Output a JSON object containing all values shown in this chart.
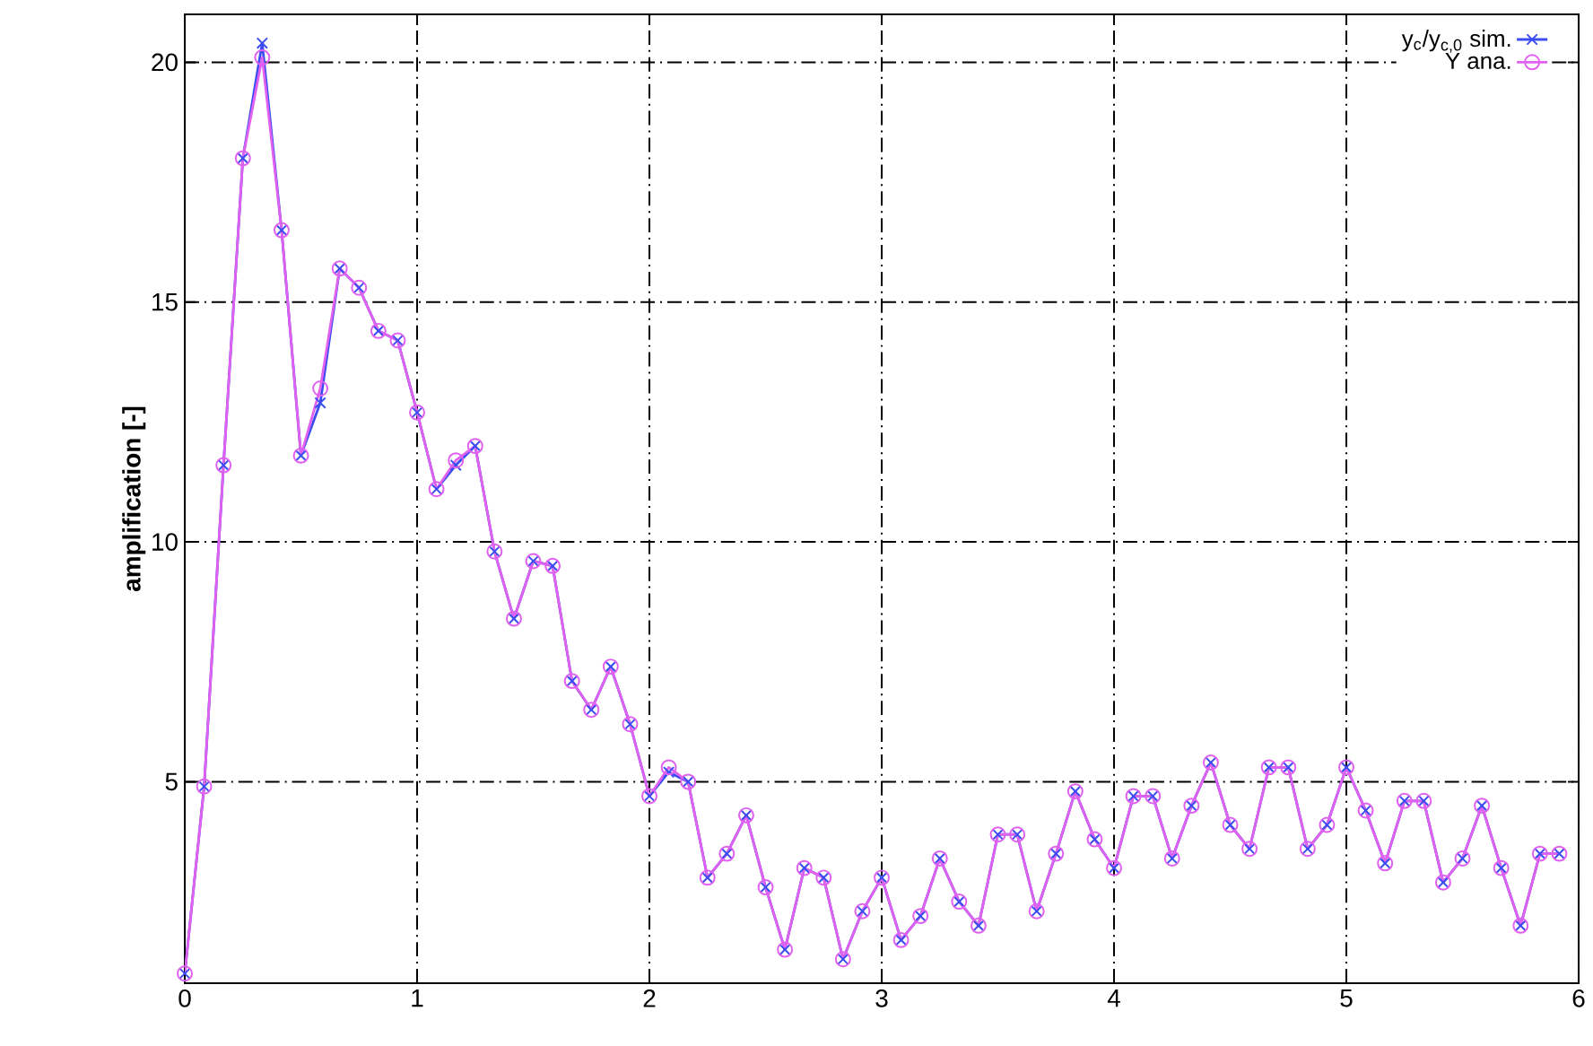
{
  "chart_data": {
    "type": "line",
    "ylabel": "amplification [-]",
    "x": [
      0,
      0.0833,
      0.1667,
      0.25,
      0.3333,
      0.4167,
      0.5,
      0.5833,
      0.6667,
      0.75,
      0.8333,
      0.9167,
      1,
      1.0833,
      1.1667,
      1.25,
      1.3333,
      1.4167,
      1.5,
      1.5833,
      1.6667,
      1.75,
      1.8333,
      1.9167,
      2,
      2.0833,
      2.1667,
      2.25,
      2.3333,
      2.4167,
      2.5,
      2.5833,
      2.6667,
      2.75,
      2.8333,
      2.9167,
      3,
      3.0833,
      3.1667,
      3.25,
      3.3333,
      3.4167,
      3.5,
      3.5833,
      3.6667,
      3.75,
      3.8333,
      3.9167,
      4,
      4.0833,
      4.1667,
      4.25,
      4.3333,
      4.4167,
      4.5,
      4.5833,
      4.6667,
      4.75,
      4.8333,
      4.9167,
      5,
      5.0833,
      5.1667,
      5.25,
      5.3333,
      5.4167,
      5.5,
      5.5833,
      5.6667,
      5.75,
      5.8333,
      5.9167
    ],
    "series": [
      {
        "name": "y$_{c}$/y$_{c,0}$ sim.",
        "color": "#3b4cf0",
        "marker": "cross",
        "values": [
          1.0,
          4.9,
          11.6,
          18.0,
          20.4,
          16.5,
          11.8,
          12.9,
          15.7,
          15.3,
          14.4,
          14.2,
          12.7,
          11.1,
          11.6,
          12.0,
          9.8,
          8.4,
          9.6,
          9.5,
          7.1,
          6.5,
          7.4,
          6.2,
          4.7,
          5.2,
          5.0,
          3.0,
          3.5,
          4.3,
          2.8,
          1.5,
          3.2,
          3.0,
          1.3,
          2.3,
          3.0,
          1.7,
          2.2,
          3.4,
          2.5,
          2.0,
          3.9,
          3.9,
          2.3,
          3.5,
          4.8,
          3.8,
          3.2,
          4.7,
          4.7,
          3.4,
          4.5,
          5.4,
          4.1,
          3.6,
          5.3,
          5.3,
          3.6,
          4.1,
          5.3,
          4.4,
          3.3,
          4.6,
          4.6,
          2.9,
          3.4,
          4.5,
          3.2,
          2.0,
          3.5,
          3.5
        ]
      },
      {
        "name": "Y ana.",
        "color": "#e060f0",
        "marker": "circle",
        "values": [
          1.0,
          4.9,
          11.6,
          18.0,
          20.1,
          16.5,
          11.8,
          13.2,
          15.7,
          15.3,
          14.4,
          14.2,
          12.7,
          11.1,
          11.7,
          12.0,
          9.8,
          8.4,
          9.6,
          9.5,
          7.1,
          6.5,
          7.4,
          6.2,
          4.7,
          5.3,
          5.0,
          3.0,
          3.5,
          4.3,
          2.8,
          1.5,
          3.2,
          3.0,
          1.3,
          2.3,
          3.0,
          1.7,
          2.2,
          3.4,
          2.5,
          2.0,
          3.9,
          3.9,
          2.3,
          3.5,
          4.8,
          3.8,
          3.2,
          4.7,
          4.7,
          3.4,
          4.5,
          5.4,
          4.1,
          3.6,
          5.3,
          5.3,
          3.6,
          4.1,
          5.3,
          4.4,
          3.3,
          4.6,
          4.6,
          2.9,
          3.4,
          4.5,
          3.2,
          2.0,
          3.5,
          3.5
        ]
      }
    ],
    "xlim": [
      0,
      6
    ],
    "xticks": [
      0,
      1,
      2,
      3,
      4,
      5,
      6
    ],
    "ylim": [
      0.8,
      21
    ],
    "yticks": [
      5,
      10,
      15,
      20
    ],
    "grid": true,
    "legend": "top right",
    "line_style": "solid"
  }
}
